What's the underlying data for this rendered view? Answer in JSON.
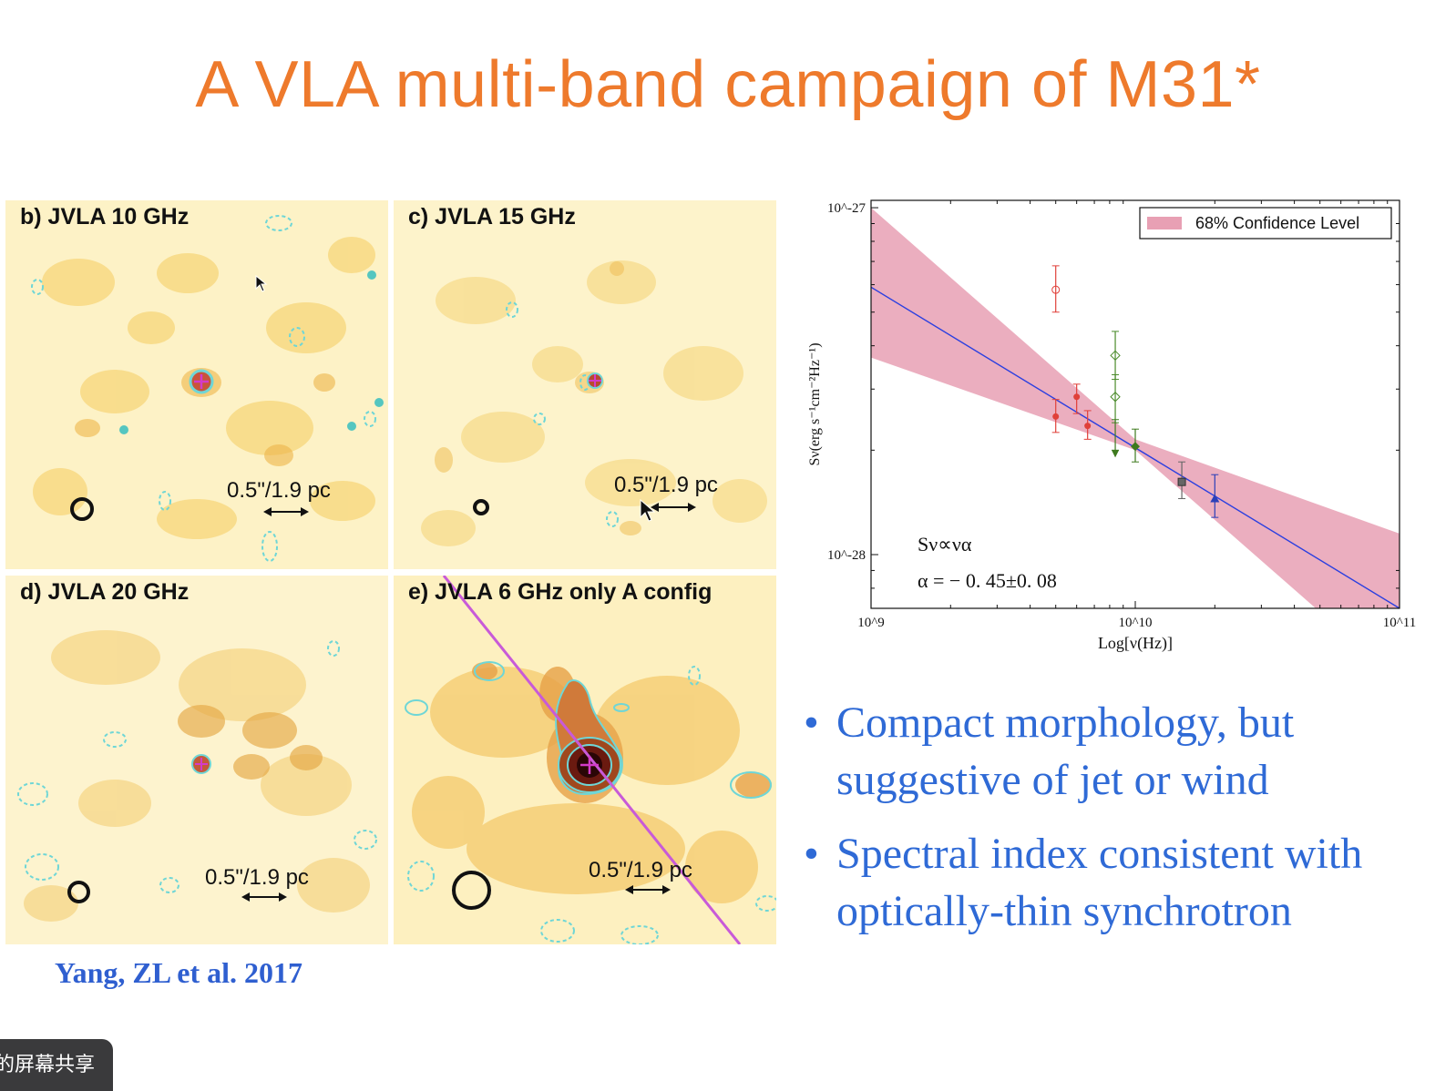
{
  "slide": {
    "title": "A VLA multi-band campaign of M31*",
    "citation": "Yang, ZL et al. 2017"
  },
  "panels": [
    {
      "label": "b) JVLA 10 GHz",
      "scale": "0.5\"/1.9 pc"
    },
    {
      "label": "c) JVLA 15 GHz",
      "scale": "0.5\"/1.9 pc"
    },
    {
      "label": "d) JVLA 20 GHz",
      "scale": "0.5\"/1.9 pc"
    },
    {
      "label": "e) JVLA 6 GHz only A config",
      "scale": "0.5\"/1.9 pc"
    }
  ],
  "chart_data": {
    "type": "scatter",
    "xlabel": "Log[ν(Hz)]",
    "ylabel": "Sν(erg s⁻¹cm⁻²Hz⁻¹)",
    "x_scale": "log",
    "y_scale": "log",
    "xlim": [
      1000000000.0,
      100000000000.0
    ],
    "ylim": [
      7e-29,
      1.05e-27
    ],
    "x_ticks": [
      "10^9",
      "10^10",
      "10^11"
    ],
    "y_ticks": [
      "10^-27",
      "10^-28"
    ],
    "legend": {
      "label": "68% Confidence Level",
      "placement": "top-right"
    },
    "formula": "Sν∝να",
    "alpha_text": "α = − 0. 45±0. 08",
    "fit": {
      "x": [
        1000000000.0,
        100000000000.0
      ],
      "y": [
        5.9e-28,
        7e-29
      ]
    },
    "band": {
      "x": [
        1000000000.0,
        10000000000.0,
        100000000000.0
      ],
      "upper": [
        1e-27,
        2.15e-28,
        1.15e-28
      ],
      "lower": [
        3.7e-28,
        2e-28,
        4.3e-29
      ]
    },
    "series": [
      {
        "color": "#e0403a",
        "marker": "open-circle",
        "x": [
          5000000000.0
        ],
        "y": [
          5.8e-28
        ],
        "err": [
          [
            5e-28,
            6.8e-28
          ]
        ]
      },
      {
        "color": "#e0403a",
        "marker": "circle",
        "x": [
          5000000000.0,
          6000000000.0,
          6600000000.0
        ],
        "y": [
          2.5e-28,
          2.85e-28,
          2.35e-28
        ],
        "err": [
          [
            2.25e-28,
            2.8e-28
          ],
          [
            2.55e-28,
            3.1e-28
          ],
          [
            2.15e-28,
            2.6e-28
          ]
        ]
      },
      {
        "color": "#4a8a2a",
        "marker": "open-diamond",
        "x": [
          8400000000.0,
          8400000000.0
        ],
        "y": [
          3.75e-28,
          2.85e-28
        ],
        "err": [
          [
            3.2e-28,
            4.4e-28
          ],
          [
            2.4e-28,
            3.3e-28
          ]
        ]
      },
      {
        "color": "#3e7a1e",
        "marker": "upper-limit",
        "x": [
          8400000000.0
        ],
        "y": [
          2.3e-28
        ],
        "err": [
          [
            2e-28,
            2.45e-28
          ]
        ]
      },
      {
        "color": "#3e7a1e",
        "marker": "diamond",
        "x": [
          10000000000.0
        ],
        "y": [
          2.05e-28
        ],
        "err": [
          [
            1.85e-28,
            2.3e-28
          ]
        ]
      },
      {
        "color": "#666666",
        "marker": "square",
        "x": [
          15000000000.0
        ],
        "y": [
          1.62e-28
        ],
        "err": [
          [
            1.45e-28,
            1.85e-28
          ]
        ]
      },
      {
        "color": "#2b3fb8",
        "marker": "triangle",
        "x": [
          20000000000.0
        ],
        "y": [
          1.45e-28
        ],
        "err": [
          [
            1.28e-28,
            1.7e-28
          ]
        ]
      }
    ]
  },
  "bullets": [
    "Compact morphology, but suggestive of jet or wind",
    "Spectral index consistent with optically-thin synchrotron"
  ],
  "share_chip": "的屏幕共享",
  "colors": {
    "title": "#ee7a2c",
    "bullet": "#2f6ad6",
    "citation": "#2f5fd0",
    "band": "#e8a0b4",
    "fit_line": "#2b3fe0",
    "contour": "#6fd6d6"
  }
}
